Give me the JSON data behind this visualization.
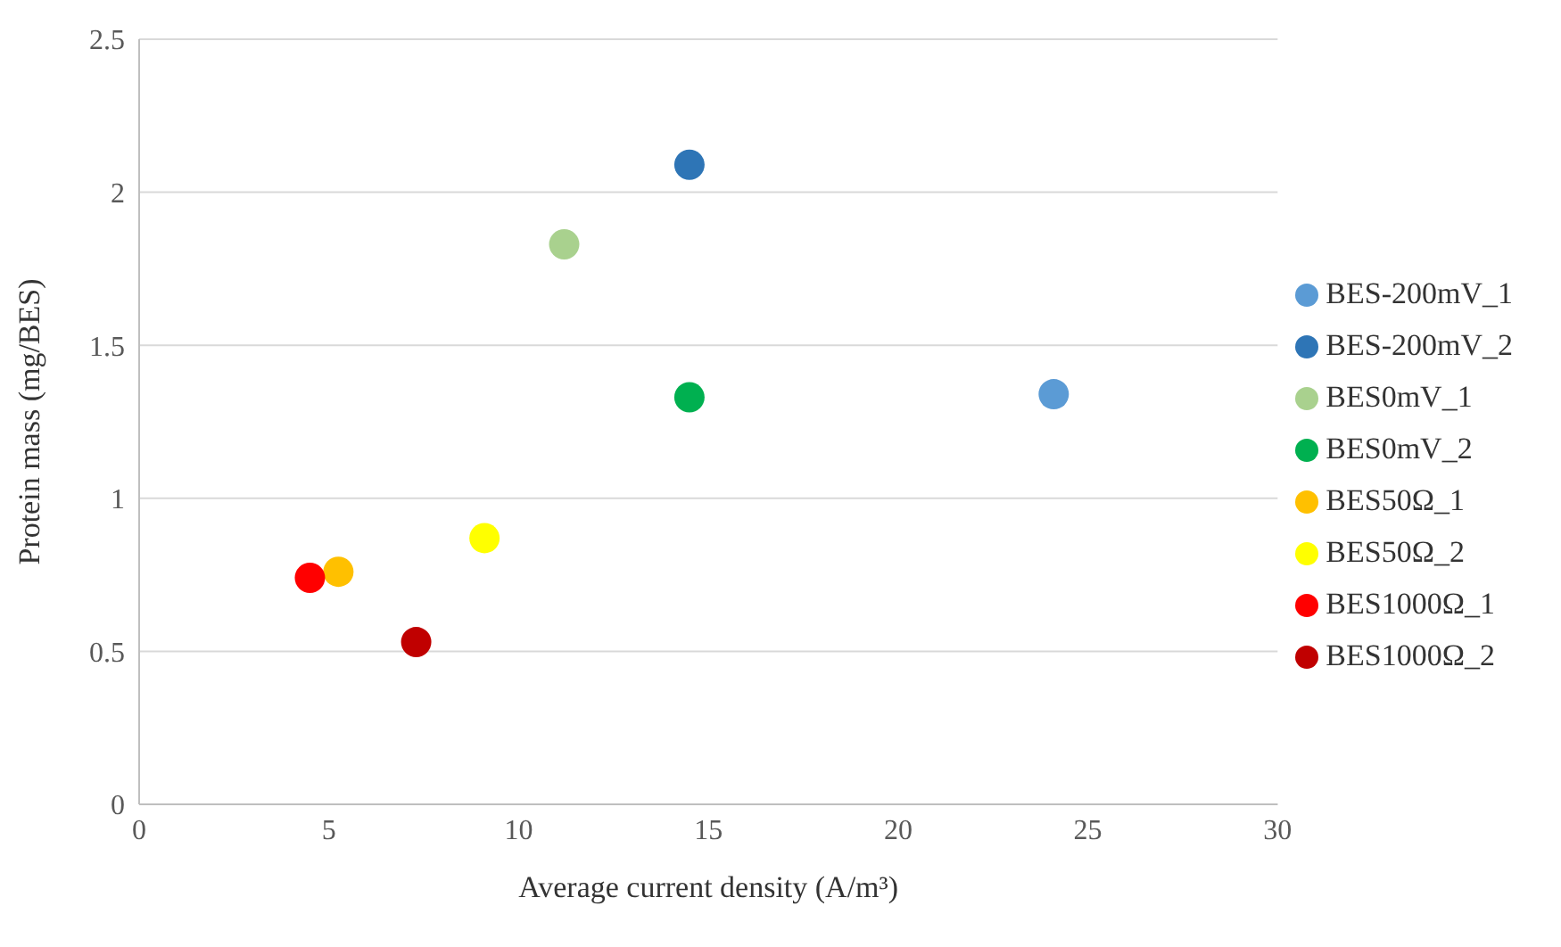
{
  "chart_data": {
    "type": "scatter",
    "xlabel": "Average current density (A/m³)",
    "ylabel": "Protein mass (mg/BES)",
    "xlim": [
      0,
      30
    ],
    "xticks": [
      0,
      5,
      10,
      15,
      20,
      25,
      30
    ],
    "ylim": [
      0,
      2.5
    ],
    "yticks": [
      0,
      0.5,
      1,
      1.5,
      2,
      2.5
    ],
    "grid": "y",
    "legend": "right",
    "marker": "circle",
    "series": [
      {
        "name": "BES-200mV_1",
        "color": "#5b9bd5",
        "x": [
          24.1
        ],
        "values": [
          1.34
        ]
      },
      {
        "name": "BES-200mV_2",
        "color": "#2e75b6",
        "x": [
          14.5
        ],
        "values": [
          2.09
        ]
      },
      {
        "name": "BES0mV_1",
        "color": "#a9d18e",
        "x": [
          11.2
        ],
        "values": [
          1.83
        ]
      },
      {
        "name": "BES0mV_2",
        "color": "#00b050",
        "x": [
          14.5
        ],
        "values": [
          1.33
        ]
      },
      {
        "name": "BES50Ω_1",
        "color": "#ffc000",
        "x": [
          5.25
        ],
        "values": [
          0.76
        ]
      },
      {
        "name": "BES50Ω_2",
        "color": "#ffff00",
        "x": [
          9.1
        ],
        "values": [
          0.87
        ]
      },
      {
        "name": "BES1000Ω_1",
        "color": "#ff0000",
        "x": [
          4.5
        ],
        "values": [
          0.74
        ]
      },
      {
        "name": "BES1000Ω_2",
        "color": "#c00000",
        "x": [
          7.3
        ],
        "values": [
          0.53
        ]
      }
    ]
  }
}
